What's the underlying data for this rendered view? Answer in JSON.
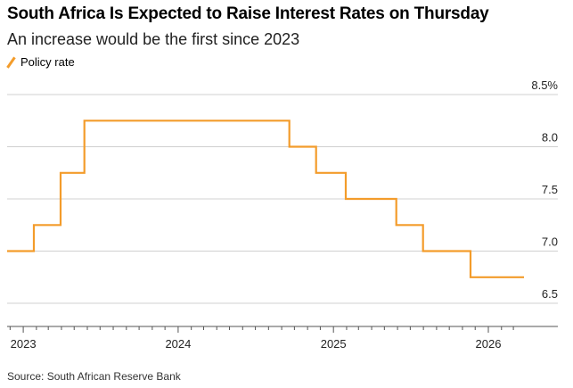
{
  "title": "South Africa Is Expected to Raise Interest Rates on Thursday",
  "subtitle": "An increase would be the first since 2023",
  "source": "Source: South African Reserve Bank",
  "colors": {
    "series": "#f39c2b",
    "grid": "#d0d0d0",
    "axis": "#555555"
  },
  "chart_data": {
    "type": "line",
    "step": true,
    "legend_position": "top-left",
    "grid": true,
    "series": [
      {
        "name": "Policy rate",
        "points": [
          {
            "x": "2022-11-24",
            "y": 7.0
          },
          {
            "x": "2023-01-26",
            "y": 7.25
          },
          {
            "x": "2023-03-30",
            "y": 7.75
          },
          {
            "x": "2023-05-25",
            "y": 8.25
          },
          {
            "x": "2024-09-19",
            "y": 8.0
          },
          {
            "x": "2024-11-21",
            "y": 7.75
          },
          {
            "x": "2025-01-30",
            "y": 7.5
          },
          {
            "x": "2025-05-29",
            "y": 7.25
          },
          {
            "x": "2025-07-31",
            "y": 7.0
          },
          {
            "x": "2025-11-20",
            "y": 6.75
          },
          {
            "x": "2026-03-26",
            "y": 6.75
          }
        ]
      }
    ],
    "y_ticks": [
      {
        "value": 8.5,
        "label": "8.5%"
      },
      {
        "value": 8.0,
        "label": "8.0"
      },
      {
        "value": 7.5,
        "label": "7.5"
      },
      {
        "value": 7.0,
        "label": "7.0"
      },
      {
        "value": 6.5,
        "label": "6.5"
      }
    ],
    "ylim": [
      6.5,
      8.5
    ],
    "x_ticks": [
      {
        "value": "2023-01-01",
        "label": "2023"
      },
      {
        "value": "2024-01-01",
        "label": "2024"
      },
      {
        "value": "2025-01-01",
        "label": "2025"
      },
      {
        "value": "2026-01-01",
        "label": "2026"
      }
    ],
    "xlim": [
      "2022-11-24",
      "2026-03-26"
    ]
  }
}
